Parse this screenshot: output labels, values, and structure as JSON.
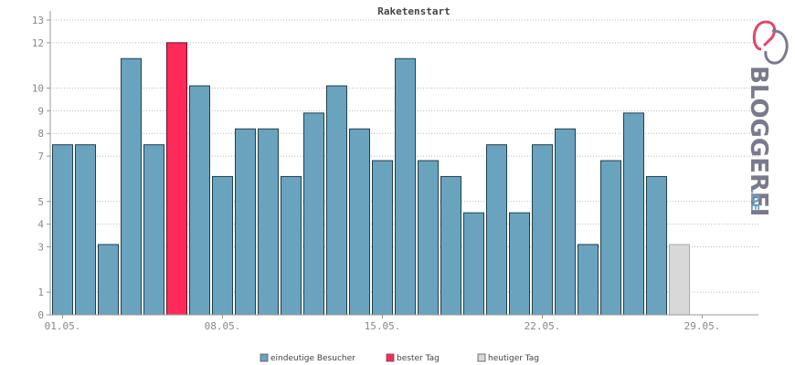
{
  "colors": {
    "bar": "#6aa3bd",
    "best": "#ff2a5a",
    "today": "#d8d8d8",
    "logo_red": "#e0476a",
    "logo_gray": "#7a7a8c",
    "logo_blue": "#6e9fbf"
  },
  "logo": {
    "text": "BLOGGEREI",
    "suffix": ".DE"
  },
  "chart_data": {
    "type": "bar",
    "title": "Raketenstart",
    "ylim": [
      0,
      13
    ],
    "yticks": [
      0,
      1,
      3,
      4,
      5,
      7,
      8,
      9,
      10,
      12,
      13
    ],
    "xtick_labels": [
      {
        "label": "01.05.",
        "index": 0
      },
      {
        "label": "08.05.",
        "index": 7
      },
      {
        "label": "15.05.",
        "index": 14
      },
      {
        "label": "22.05.",
        "index": 21
      },
      {
        "label": "29.05.",
        "index": 28
      }
    ],
    "grid": true,
    "values": [
      7.5,
      7.5,
      3.1,
      11.3,
      7.5,
      12.0,
      10.1,
      6.1,
      8.2,
      8.2,
      6.1,
      8.9,
      10.1,
      8.2,
      6.8,
      11.3,
      6.8,
      6.1,
      4.5,
      7.5,
      4.5,
      7.5,
      8.2,
      3.1,
      6.8,
      8.9,
      6.1,
      3.1,
      0,
      0,
      0
    ],
    "best_index": 5,
    "today_index": 27,
    "legend": [
      {
        "label": "eindeutige Besucher",
        "color": "#6aa3bd"
      },
      {
        "label": "bester Tag",
        "color": "#ff2a5a"
      },
      {
        "label": "heutiger Tag",
        "color": "#d8d8d8"
      }
    ]
  }
}
